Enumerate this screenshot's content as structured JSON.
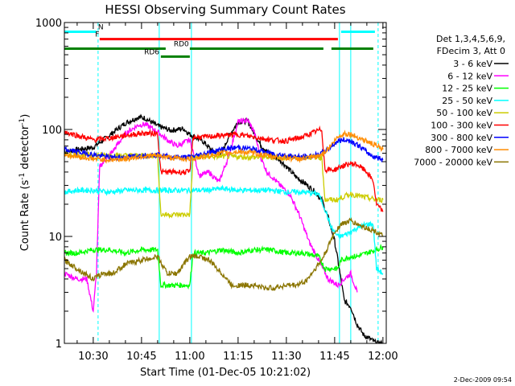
{
  "chart_data": {
    "type": "line",
    "title": "HESSI Observing Summary Count Rates",
    "xlabel": "Start Time (01-Dec-05 10:21:02)",
    "ylabel_main": "Count Rate (s",
    "ylabel_sup": "-1",
    "ylabel_mid": " detector",
    "ylabel_end": ")",
    "x_unit": "minutes since 10:00",
    "xlim": [
      21.03,
      121.03
    ],
    "ylim": [
      1,
      1000
    ],
    "yscale": "log",
    "x_ticks": [
      {
        "value": 30,
        "label": "10:30"
      },
      {
        "value": 45,
        "label": "10:45"
      },
      {
        "value": 60,
        "label": "11:00"
      },
      {
        "value": 75,
        "label": "11:15"
      },
      {
        "value": 90,
        "label": "11:30"
      },
      {
        "value": 105,
        "label": "11:45"
      },
      {
        "value": 120,
        "label": "12:00"
      }
    ],
    "y_ticks": [
      {
        "value": 1,
        "label": "1"
      },
      {
        "value": 10,
        "label": "10"
      },
      {
        "value": 100,
        "label": "100"
      },
      {
        "value": 1000,
        "label": "1000"
      }
    ],
    "legend": {
      "placement": "right",
      "header": [
        "Det 1,3,4,5,6,9,",
        "FDecim 3, Att 0"
      ]
    },
    "flags": [
      {
        "label": "N",
        "color": "#00ffff",
        "segments": [
          [
            21.03,
            31.0
          ],
          [
            107.0,
            117.5
          ]
        ],
        "level": 820,
        "label_x": 31.5
      },
      {
        "label": "F",
        "color": "#ff0000",
        "segments": [
          [
            32.0,
            106.0
          ]
        ],
        "level": 700,
        "label_x": 30.6
      },
      {
        "label": "RD0",
        "color": "#008000",
        "segments": [
          [
            21.03,
            52.5
          ],
          [
            60.0,
            101.5
          ],
          [
            104.0,
            117.0
          ]
        ],
        "level": 570,
        "label_x": 55.0
      },
      {
        "label": "RD6",
        "color": "#008000",
        "segments": [
          [
            51.0,
            60.0
          ]
        ],
        "level": 480,
        "label_x": 45.8
      }
    ],
    "cyan_vlines": [
      31.5,
      118.5
    ],
    "saa_vlines": [
      50.5,
      60.5,
      106.5,
      110.0
    ],
    "series": [
      {
        "name": "3 - 6 keV",
        "color": "#000000",
        "x": [
          21.03,
          30,
          35,
          40,
          44,
          46,
          50,
          54,
          58,
          60,
          64,
          67,
          70,
          72,
          75,
          78,
          80,
          82,
          85,
          88,
          90,
          93,
          96,
          99,
          101,
          103,
          105,
          106,
          108,
          110,
          112,
          114,
          116,
          118,
          120
        ],
        "y": [
          62,
          68,
          88,
          115,
          130,
          128,
          108,
          98,
          102,
          90,
          78,
          63,
          60,
          85,
          118,
          120,
          92,
          72,
          58,
          52,
          45,
          36,
          31,
          26,
          22,
          15,
          9,
          6,
          2.5,
          2.2,
          1.5,
          1.2,
          1.1,
          1,
          1
        ]
      },
      {
        "name": "6 - 12 keV",
        "color": "#ff00ff",
        "x": [
          21.03,
          25,
          28,
          30,
          31,
          32,
          36,
          40,
          44,
          46,
          50,
          53,
          56,
          58,
          60,
          63,
          66,
          69,
          72,
          75,
          78,
          80,
          82,
          84,
          86,
          88,
          91,
          94,
          97,
          100,
          103,
          106,
          108,
          110,
          112
        ],
        "y": [
          4.5,
          4,
          4,
          2,
          4.5,
          45,
          62,
          92,
          110,
          112,
          95,
          80,
          70,
          75,
          80,
          37,
          40,
          32,
          55,
          118,
          122,
          95,
          55,
          40,
          35,
          30,
          25,
          16,
          9,
          6,
          4,
          3.5,
          4,
          4.5,
          3
        ]
      },
      {
        "name": "12 - 25 keV",
        "color": "#00ff00",
        "x": [
          21.03,
          25,
          30,
          35,
          40,
          45,
          50,
          51,
          55,
          60,
          61,
          65,
          70,
          75,
          80,
          85,
          90,
          95,
          100,
          102,
          106,
          107,
          110,
          112,
          115,
          118,
          120
        ],
        "y": [
          7,
          7,
          7.5,
          7.5,
          7,
          7.5,
          7.5,
          3.5,
          3.5,
          3.5,
          7,
          7,
          7.5,
          7,
          7.5,
          7.5,
          7,
          7,
          6.5,
          5,
          5,
          6,
          6.5,
          6.5,
          7,
          7.5,
          8
        ]
      },
      {
        "name": "25 - 50 keV",
        "color": "#00ffff",
        "x": [
          21.03,
          25,
          30,
          35,
          40,
          45,
          50,
          51,
          55,
          60,
          61,
          65,
          70,
          75,
          80,
          85,
          90,
          95,
          100,
          102,
          104,
          106,
          107,
          110,
          112,
          115,
          117,
          118,
          120
        ],
        "y": [
          26,
          27,
          27,
          26,
          27,
          27,
          27,
          27,
          27,
          27,
          27,
          27,
          28,
          27,
          27,
          27,
          26,
          26,
          25,
          18,
          12,
          10,
          10,
          11,
          12,
          13,
          13,
          5,
          4.5
        ]
      },
      {
        "name": "50 - 100 keV",
        "color": "#cccc00",
        "x": [
          21.03,
          30,
          40,
          50,
          51,
          55,
          60,
          61,
          70,
          80,
          90,
          101,
          102,
          105,
          106,
          107,
          110,
          112,
          115,
          118,
          120
        ],
        "y": [
          58,
          58,
          57,
          57,
          16,
          16,
          16,
          55,
          56,
          55,
          55,
          55,
          22,
          22,
          22,
          23,
          25,
          24,
          23,
          22,
          22
        ]
      },
      {
        "name": "100 - 300 keV",
        "color": "#ff0000",
        "x": [
          21.03,
          25,
          30,
          35,
          40,
          45,
          50,
          51,
          55,
          60,
          61,
          65,
          70,
          75,
          80,
          85,
          90,
          95,
          100,
          101,
          102,
          105,
          107,
          110,
          112,
          115,
          117,
          118,
          120
        ],
        "y": [
          95,
          88,
          80,
          83,
          88,
          92,
          92,
          40,
          40,
          40,
          85,
          85,
          88,
          90,
          85,
          80,
          78,
          85,
          98,
          100,
          42,
          42,
          45,
          48,
          47,
          40,
          33,
          20,
          17
        ]
      },
      {
        "name": "300 - 800 keV",
        "color": "#0000ff",
        "x": [
          21.03,
          25,
          30,
          35,
          40,
          45,
          50,
          55,
          60,
          65,
          70,
          75,
          80,
          85,
          90,
          95,
          100,
          102,
          104,
          106,
          108,
          110,
          112,
          114,
          116,
          118,
          120
        ],
        "y": [
          65,
          62,
          58,
          55,
          55,
          57,
          58,
          55,
          55,
          60,
          65,
          68,
          65,
          60,
          57,
          55,
          58,
          62,
          70,
          78,
          80,
          78,
          72,
          65,
          58,
          55,
          52
        ]
      },
      {
        "name": "800 - 7000 keV",
        "color": "#ff8c00",
        "x": [
          21.03,
          25,
          30,
          35,
          40,
          45,
          50,
          55,
          60,
          65,
          70,
          75,
          80,
          85,
          90,
          95,
          100,
          102,
          104,
          106,
          108,
          110,
          112,
          114,
          116,
          118,
          120
        ],
        "y": [
          58,
          56,
          53,
          52,
          53,
          56,
          57,
          54,
          53,
          56,
          60,
          62,
          60,
          56,
          54,
          53,
          56,
          62,
          72,
          85,
          92,
          90,
          85,
          80,
          75,
          70,
          65
        ]
      },
      {
        "name": "7000 - 20000 keV",
        "color": "#8b7500",
        "x": [
          21.03,
          25,
          30,
          33,
          36,
          40,
          45,
          50,
          53,
          56,
          60,
          63,
          66,
          70,
          73,
          76,
          80,
          83,
          86,
          90,
          93,
          96,
          99,
          101,
          103,
          105,
          107,
          110,
          112,
          115,
          118,
          120
        ],
        "y": [
          6,
          5,
          4,
          4.5,
          4.5,
          5.5,
          6,
          6.5,
          4.5,
          4.5,
          6.5,
          6.5,
          6,
          4.5,
          3.5,
          3.5,
          3.5,
          3.3,
          3.3,
          3.5,
          3.5,
          3.8,
          5,
          6,
          8,
          11,
          13,
          14,
          13,
          12,
          11,
          10
        ]
      }
    ]
  },
  "footer": {
    "timestamp": "2-Dec-2009 09:54"
  }
}
